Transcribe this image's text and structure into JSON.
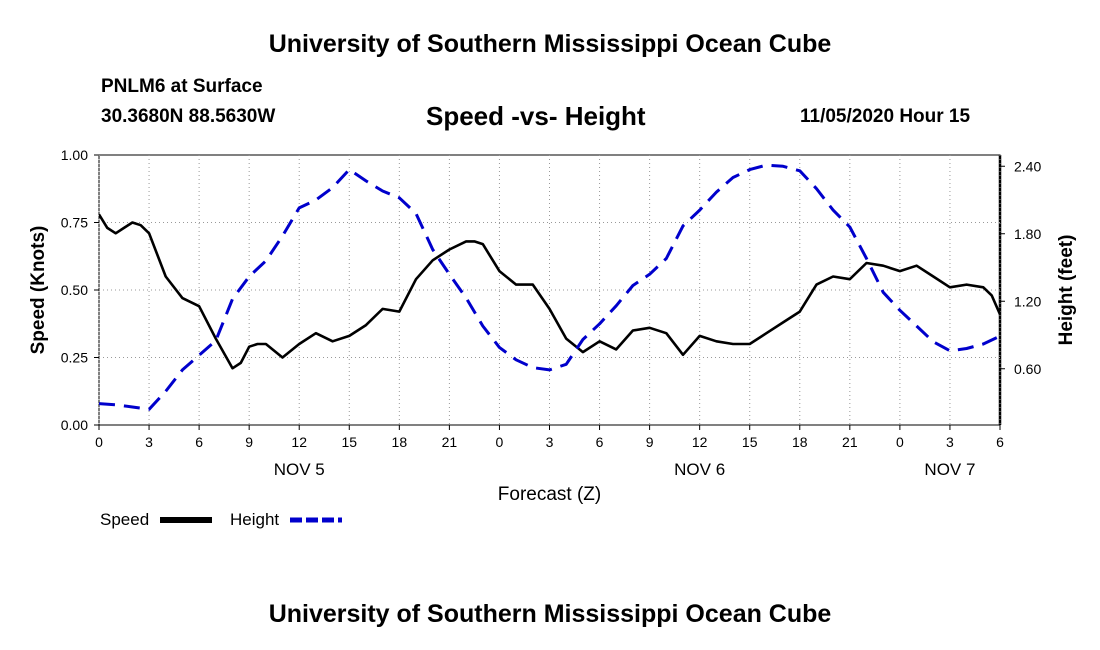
{
  "header": {
    "title_top": "University of Southern Mississippi Ocean Cube",
    "station": "PNLM6 at Surface",
    "coords": "30.3680N 88.5630W",
    "subtitle": "Speed -vs- Height",
    "datetime": "11/05/2020 Hour 15",
    "title_bottom": "University of Southern Mississippi Ocean Cube"
  },
  "colors": {
    "speed": "#000000",
    "height": "#0000cc"
  },
  "chart_data": {
    "type": "line",
    "xlabel": "Forecast (Z)",
    "ylabel_left": "Speed (Knots)",
    "ylabel_right": "Height (feet)",
    "xlim": [
      0,
      54
    ],
    "ylim_left": [
      0,
      1
    ],
    "ylim_right": [
      0.1,
      2.5
    ],
    "x_ticks": [
      0,
      3,
      6,
      9,
      12,
      15,
      18,
      21,
      24,
      27,
      30,
      33,
      36,
      39,
      42,
      45,
      48,
      51,
      54
    ],
    "x_tick_labels": [
      "0",
      "3",
      "6",
      "9",
      "12",
      "15",
      "18",
      "21",
      "0",
      "3",
      "6",
      "9",
      "12",
      "15",
      "18",
      "21",
      "0",
      "3",
      "6"
    ],
    "date_labels": [
      {
        "x": 12,
        "label": "NOV 5"
      },
      {
        "x": 36,
        "label": "NOV 6"
      },
      {
        "x": 51,
        "label": "NOV 7"
      }
    ],
    "y_left_ticks": [
      0,
      0.25,
      0.5,
      0.75,
      1.0
    ],
    "y_left_tick_labels": [
      "0.00",
      "0.25",
      "0.50",
      "0.75",
      "1.00"
    ],
    "y_right_ticks": [
      0.6,
      1.2,
      1.8,
      2.4
    ],
    "y_right_tick_labels": [
      "0.60",
      "1.20",
      "1.80",
      "2.40"
    ],
    "legend": [
      {
        "name": "Speed",
        "style": "solid"
      },
      {
        "name": "Height",
        "style": "dashed"
      }
    ],
    "series": [
      {
        "name": "Speed",
        "axis": "left",
        "style": "solid",
        "x": [
          0,
          0.5,
          1,
          1.5,
          2,
          2.5,
          3,
          4,
          5,
          6,
          7,
          8,
          8.5,
          9,
          9.5,
          10,
          11,
          12,
          13,
          14,
          15,
          16,
          17,
          18,
          19,
          20,
          21,
          22,
          22.5,
          23,
          24,
          25,
          26,
          27,
          28,
          29,
          30,
          31,
          32,
          33,
          34,
          35,
          36,
          37,
          38,
          39,
          40,
          41,
          42,
          43,
          44,
          45,
          46,
          47,
          48,
          49,
          50,
          51,
          52,
          53,
          53.5,
          54
        ],
        "values": [
          0.78,
          0.73,
          0.71,
          0.73,
          0.75,
          0.74,
          0.71,
          0.55,
          0.47,
          0.44,
          0.32,
          0.21,
          0.23,
          0.29,
          0.3,
          0.3,
          0.25,
          0.3,
          0.34,
          0.31,
          0.33,
          0.37,
          0.43,
          0.42,
          0.54,
          0.61,
          0.65,
          0.68,
          0.68,
          0.67,
          0.57,
          0.52,
          0.52,
          0.43,
          0.32,
          0.27,
          0.31,
          0.28,
          0.35,
          0.36,
          0.34,
          0.26,
          0.33,
          0.31,
          0.3,
          0.3,
          0.34,
          0.38,
          0.42,
          0.52,
          0.55,
          0.54,
          0.6,
          0.59,
          0.57,
          0.59,
          0.55,
          0.51,
          0.52,
          0.51,
          0.48,
          0.41
        ]
      },
      {
        "name": "Height",
        "axis": "right",
        "style": "dashed",
        "x": [
          0,
          1,
          2,
          3,
          4,
          5,
          6,
          7,
          8,
          9,
          10,
          11,
          12,
          13,
          14,
          15,
          16,
          17,
          18,
          19,
          20,
          21,
          22,
          23,
          24,
          25,
          26,
          27,
          28,
          29,
          30,
          31,
          32,
          33,
          34,
          35,
          36,
          37,
          38,
          39,
          40,
          41,
          42,
          43,
          44,
          45,
          46,
          47,
          48,
          49,
          50,
          51,
          52,
          53,
          54
        ],
        "values": [
          0.29,
          0.28,
          0.26,
          0.24,
          0.4,
          0.59,
          0.72,
          0.85,
          1.22,
          1.42,
          1.56,
          1.78,
          2.03,
          2.1,
          2.21,
          2.37,
          2.27,
          2.18,
          2.12,
          1.98,
          1.66,
          1.44,
          1.23,
          0.98,
          0.79,
          0.68,
          0.61,
          0.59,
          0.64,
          0.86,
          1.0,
          1.16,
          1.34,
          1.44,
          1.58,
          1.87,
          2.01,
          2.17,
          2.3,
          2.37,
          2.41,
          2.4,
          2.36,
          2.2,
          2.01,
          1.86,
          1.58,
          1.28,
          1.12,
          0.98,
          0.84,
          0.76,
          0.78,
          0.82,
          0.89
        ]
      }
    ]
  }
}
